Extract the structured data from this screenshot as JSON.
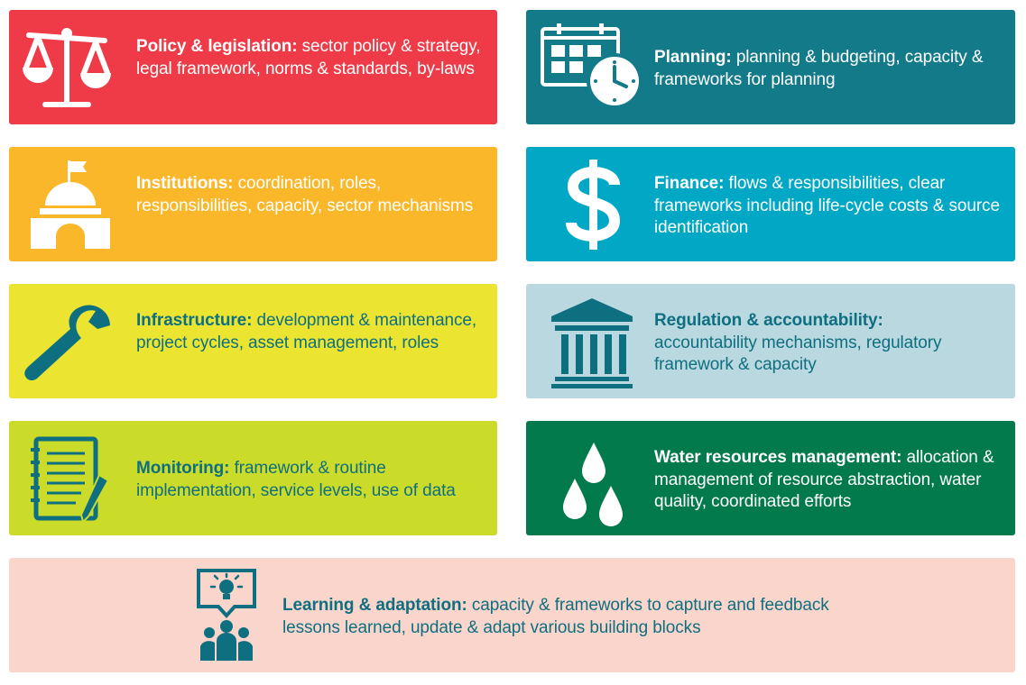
{
  "colors": {
    "policy": "#ef3b47",
    "planning": "#137a8a",
    "institutions": "#fbb72a",
    "finance": "#00a8c6",
    "infrastructure": "#ebe532",
    "regulation": "#b9d8e0",
    "monitoring": "#cbdb2a",
    "water": "#037a4c",
    "learning": "#fad5cb",
    "teal_text": "#0e6f80"
  },
  "blocks": [
    {
      "id": "policy",
      "icon": "scales-icon",
      "title": "Policy & legislation:",
      "body": "sector policy & strategy, legal framework, norms & standards, by-laws"
    },
    {
      "id": "planning",
      "icon": "calendar-clock-icon",
      "title": "Planning:",
      "body": "planning & budgeting, capacity & frameworks for planning"
    },
    {
      "id": "institutions",
      "icon": "government-building-icon",
      "title": "Institutions:",
      "body": "coordination, roles, responsibilities, capacity, sector mechanisms"
    },
    {
      "id": "finance",
      "icon": "dollar-sign-icon",
      "title": "Finance:",
      "body": "flows & responsibilities, clear frameworks including life-cycle costs & source identification"
    },
    {
      "id": "infrastructure",
      "icon": "wrench-icon",
      "title": "Infrastructure:",
      "body": "development & maintenance, project cycles, asset management, roles"
    },
    {
      "id": "regulation",
      "icon": "courthouse-icon",
      "title": "Regulation & accountability:",
      "body": "accountability mechanisms, regulatory framework & capacity"
    },
    {
      "id": "monitoring",
      "icon": "notepad-pencil-icon",
      "title": "Monitoring:",
      "body": "framework & routine implementation, service levels, use of data"
    },
    {
      "id": "water",
      "icon": "water-drops-icon",
      "title": "Water resources management:",
      "body": "allocation & management of resource abstraction, water quality, coordinated efforts"
    },
    {
      "id": "learning",
      "icon": "lightbulb-people-icon",
      "title": "Learning & adaptation:",
      "body": "capacity & frameworks to capture and feedback lessons learned, update & adapt various building blocks"
    }
  ]
}
